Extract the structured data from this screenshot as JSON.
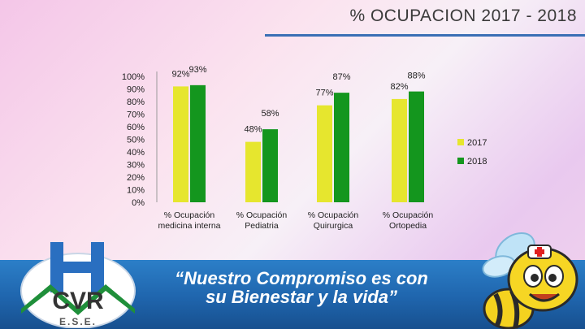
{
  "title": "% OCUPACION 2017 - 2018",
  "slogan": {
    "line1": "“Nuestro Compromiso es con",
    "line2": "su Bienestar y la vida”"
  },
  "logo": {
    "letters": "CVR",
    "sub": "E.S.E."
  },
  "colors": {
    "series_2017": "#e6e62e",
    "series_2018": "#14961e",
    "banner": "#1f65ad"
  },
  "chart_data": {
    "type": "bar",
    "categories": [
      "% Ocupación medicina interna",
      "% Ocupación Pediatria",
      "% Ocupación Quirurgica",
      "% Ocupación Ortopedia"
    ],
    "category_lines": [
      [
        "% Ocupación",
        "medicina interna"
      ],
      [
        "% Ocupación",
        "Pediatria"
      ],
      [
        "% Ocupación",
        "Quirurgica"
      ],
      [
        "% Ocupación",
        "Ortopedia"
      ]
    ],
    "series": [
      {
        "name": "2017",
        "values": [
          92,
          48,
          77,
          82
        ],
        "labels": [
          "92%",
          "48%",
          "77%",
          "82%"
        ]
      },
      {
        "name": "2018",
        "values": [
          93,
          58,
          87,
          88
        ],
        "labels": [
          "93%",
          "58%",
          "87%",
          "88%"
        ]
      }
    ],
    "ylim": [
      0,
      100
    ],
    "y_ticks": [
      0,
      10,
      20,
      30,
      40,
      50,
      60,
      70,
      80,
      90,
      100
    ],
    "y_tick_labels": [
      "0%",
      "10%",
      "20%",
      "30%",
      "40%",
      "50%",
      "60%",
      "70%",
      "80%",
      "90%",
      "100%"
    ],
    "legend_position": "right",
    "grid": false
  }
}
